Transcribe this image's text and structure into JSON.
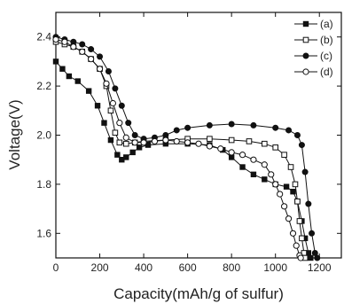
{
  "chart_data": {
    "type": "line",
    "title": "",
    "xlabel": "Capacity(mAh/g of sulfur)",
    "ylabel": "Voltage(V)",
    "xlim": [
      0,
      1300
    ],
    "ylim": [
      1.5,
      2.5
    ],
    "xticks": [
      0,
      200,
      400,
      600,
      800,
      1000,
      1200
    ],
    "yticks": [
      1.6,
      1.8,
      2.0,
      2.2,
      2.4
    ],
    "xtick_labels": [
      "0",
      "200",
      "400",
      "600",
      "800",
      "1000",
      "1200"
    ],
    "ytick_labels": [
      "1.6",
      "1.8",
      "2.0",
      "2.2",
      "2.4"
    ],
    "grid": false,
    "legend_position": "top-right",
    "series": [
      {
        "name": "(a)",
        "marker": "filled-square",
        "points": [
          [
            0,
            2.3
          ],
          [
            30,
            2.27
          ],
          [
            60,
            2.24
          ],
          [
            100,
            2.22
          ],
          [
            150,
            2.18
          ],
          [
            190,
            2.12
          ],
          [
            220,
            2.05
          ],
          [
            250,
            1.98
          ],
          [
            280,
            1.92
          ],
          [
            300,
            1.9
          ],
          [
            320,
            1.91
          ],
          [
            350,
            1.93
          ],
          [
            380,
            1.95
          ],
          [
            420,
            1.96
          ],
          [
            500,
            1.965
          ],
          [
            600,
            1.965
          ],
          [
            700,
            1.96
          ],
          [
            760,
            1.94
          ],
          [
            800,
            1.91
          ],
          [
            850,
            1.87
          ],
          [
            900,
            1.84
          ],
          [
            950,
            1.82
          ],
          [
            1000,
            1.8
          ],
          [
            1050,
            1.79
          ],
          [
            1080,
            1.77
          ],
          [
            1100,
            1.73
          ],
          [
            1120,
            1.65
          ],
          [
            1135,
            1.58
          ],
          [
            1150,
            1.52
          ],
          [
            1160,
            1.5
          ]
        ]
      },
      {
        "name": "(b)",
        "marker": "open-square",
        "points": [
          [
            0,
            2.38
          ],
          [
            40,
            2.37
          ],
          [
            80,
            2.36
          ],
          [
            120,
            2.34
          ],
          [
            160,
            2.31
          ],
          [
            200,
            2.27
          ],
          [
            230,
            2.2
          ],
          [
            250,
            2.1
          ],
          [
            270,
            2.01
          ],
          [
            290,
            1.97
          ],
          [
            320,
            1.965
          ],
          [
            360,
            1.97
          ],
          [
            400,
            1.975
          ],
          [
            500,
            1.98
          ],
          [
            600,
            1.985
          ],
          [
            700,
            1.985
          ],
          [
            800,
            1.98
          ],
          [
            880,
            1.975
          ],
          [
            950,
            1.965
          ],
          [
            1000,
            1.95
          ],
          [
            1040,
            1.92
          ],
          [
            1070,
            1.87
          ],
          [
            1090,
            1.8
          ],
          [
            1100,
            1.73
          ],
          [
            1110,
            1.65
          ],
          [
            1120,
            1.58
          ],
          [
            1130,
            1.52
          ],
          [
            1135,
            1.5
          ]
        ]
      },
      {
        "name": "(c)",
        "marker": "filled-circle",
        "points": [
          [
            0,
            2.4
          ],
          [
            40,
            2.39
          ],
          [
            80,
            2.38
          ],
          [
            120,
            2.37
          ],
          [
            160,
            2.35
          ],
          [
            200,
            2.32
          ],
          [
            240,
            2.26
          ],
          [
            270,
            2.19
          ],
          [
            300,
            2.12
          ],
          [
            330,
            2.05
          ],
          [
            360,
            2.0
          ],
          [
            400,
            1.985
          ],
          [
            450,
            1.99
          ],
          [
            500,
            2.0
          ],
          [
            550,
            2.02
          ],
          [
            600,
            2.03
          ],
          [
            700,
            2.04
          ],
          [
            800,
            2.045
          ],
          [
            900,
            2.04
          ],
          [
            1000,
            2.03
          ],
          [
            1060,
            2.02
          ],
          [
            1100,
            2.0
          ],
          [
            1120,
            1.96
          ],
          [
            1135,
            1.85
          ],
          [
            1150,
            1.72
          ],
          [
            1165,
            1.6
          ],
          [
            1180,
            1.52
          ],
          [
            1190,
            1.5
          ]
        ]
      },
      {
        "name": "(d)",
        "marker": "open-circle",
        "points": [
          [
            0,
            2.39
          ],
          [
            40,
            2.38
          ],
          [
            80,
            2.36
          ],
          [
            120,
            2.34
          ],
          [
            160,
            2.31
          ],
          [
            200,
            2.27
          ],
          [
            230,
            2.21
          ],
          [
            260,
            2.13
          ],
          [
            290,
            2.05
          ],
          [
            320,
            1.99
          ],
          [
            360,
            1.97
          ],
          [
            400,
            1.97
          ],
          [
            450,
            1.975
          ],
          [
            500,
            1.98
          ],
          [
            550,
            1.975
          ],
          [
            600,
            1.97
          ],
          [
            650,
            1.965
          ],
          [
            700,
            1.955
          ],
          [
            750,
            1.945
          ],
          [
            800,
            1.93
          ],
          [
            850,
            1.92
          ],
          [
            900,
            1.9
          ],
          [
            950,
            1.88
          ],
          [
            980,
            1.84
          ],
          [
            1000,
            1.8
          ],
          [
            1020,
            1.76
          ],
          [
            1040,
            1.71
          ],
          [
            1060,
            1.66
          ],
          [
            1080,
            1.6
          ],
          [
            1095,
            1.55
          ],
          [
            1110,
            1.51
          ],
          [
            1115,
            1.5
          ]
        ]
      }
    ]
  }
}
